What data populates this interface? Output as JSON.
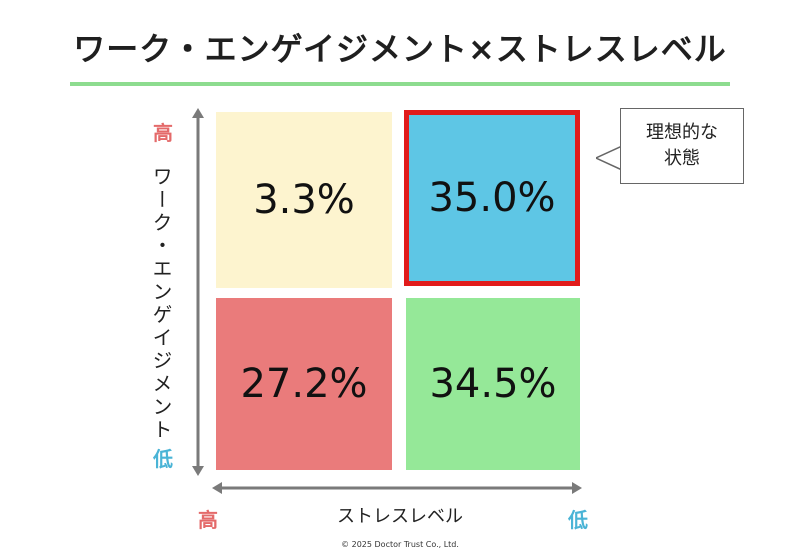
{
  "title": "ワーク・エンゲイジメント×ストレスレベル",
  "y_axis": {
    "label": "ワーク・エンゲイジメント",
    "high": "高",
    "low": "低"
  },
  "x_axis": {
    "label": "ストレスレベル",
    "high": "高",
    "low": "低"
  },
  "quadrants": {
    "top_left": "3.3%",
    "top_right": "35.0%",
    "bottom_left": "27.2%",
    "bottom_right": "34.5%"
  },
  "callout": {
    "line1": "理想的な",
    "line2": "状態"
  },
  "copyright": "© 2025 Doctor Trust Co., Ltd.",
  "colors": {
    "top_left": "#fdf4cf",
    "top_right": "#5ec6e5",
    "bottom_left": "#ea7b7b",
    "bottom_right": "#95e898",
    "highlight_border": "#e11b1b",
    "title_rule": "#8ddc8f",
    "high_label": "#e46a6a",
    "low_label": "#4ab4d6"
  }
}
